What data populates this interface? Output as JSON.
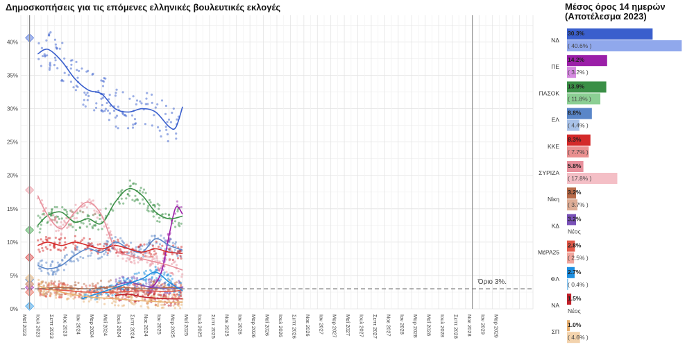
{
  "chart_title": "Δημοσκοπήσεις για τις επόμενες ελληνικές βουλευτικές εκλογές",
  "side_title_line1": "Μέσος όρος 14 ημερών",
  "side_title_line2": "(Αποτέλεσμα 2023)",
  "threshold_label": "Όριο 3%.",
  "chart_data": {
    "type": "line",
    "title": "Δημοσκοπήσεις για τις επόμενες ελληνικές βουλευτικές εκλογές",
    "ylim": [
      0,
      44
    ],
    "yticks": [
      0,
      5,
      10,
      15,
      20,
      25,
      30,
      35,
      40
    ],
    "ytick_labels": [
      "0%",
      "5%",
      "10%",
      "15%",
      "20%",
      "25%",
      "30%",
      "35%",
      "40%"
    ],
    "x_start_month": 0,
    "x_end_month": 76,
    "xtick_labels": [
      "Μαΐ 2023",
      "Ιουλ 2023",
      "Σεπτ 2023",
      "Νοε 2023",
      "Ιαν 2024",
      "Μαρ 2024",
      "Μαΐ 2024",
      "Ιουλ 2024",
      "Σεπτ 2024",
      "Νοε 2024",
      "Ιαν 2025",
      "Μαρ 2025",
      "Μαΐ 2025",
      "Ιουλ 2025",
      "Σεπτ 2025",
      "Νοε 2025",
      "Ιαν 2026",
      "Μαρ 2026",
      "Μαΐ 2026",
      "Ιουλ 2026",
      "Σεπτ 2026",
      "Νοε 2026",
      "Ιαν 2027",
      "Μαρ 2027",
      "Μαΐ 2027",
      "Ιουλ 2027",
      "Σεπτ 2027",
      "Νοε 2027",
      "Ιαν 2028",
      "Μαρ 2028",
      "Μαΐ 2028",
      "Ιουλ 2028",
      "Σεπτ 2028",
      "Νοε 2028",
      "Ιαν 2029",
      "Μαρ 2029"
    ],
    "election_month": 1.3,
    "next_election_month": 67,
    "threshold": 3,
    "series": [
      {
        "name": "ΝΔ",
        "color": "#3a5fcd",
        "light": "#90a8ec",
        "result2023": 40.6,
        "x": [
          2.5,
          4,
          6,
          8,
          10,
          12,
          14,
          16,
          18,
          20,
          22,
          23,
          24
        ],
        "y": [
          38.2,
          38.9,
          37.2,
          34.5,
          32.8,
          32.2,
          30.0,
          29.5,
          30.0,
          29.5,
          27.3,
          27.2,
          30.3
        ]
      },
      {
        "name": "ΠΕ",
        "color": "#9b1fa8",
        "light": "#d58ae0",
        "result2023": 3.2,
        "x": [
          19,
          20,
          21,
          22,
          23,
          24
        ],
        "y": [
          3.0,
          3.8,
          6.0,
          11.0,
          15.2,
          14.2
        ]
      },
      {
        "name": "ΠΑΣΟΚ",
        "color": "#3a8f46",
        "light": "#8ccf94",
        "result2023": 11.8,
        "x": [
          2.5,
          4,
          6,
          8,
          10,
          12,
          14,
          16,
          18,
          20,
          22,
          24
        ],
        "y": [
          12.5,
          14.0,
          14.5,
          13.0,
          13.5,
          12.8,
          16.0,
          18.0,
          17.0,
          14.5,
          13.5,
          13.9
        ]
      },
      {
        "name": "ΕΛ",
        "color": "#5a86c8",
        "light": "#a9c2e8",
        "result2023": 4.4,
        "x": [
          2.5,
          4,
          6,
          8,
          10,
          12,
          14,
          16,
          18,
          20,
          22,
          24
        ],
        "y": [
          6.5,
          6.0,
          6.5,
          8.0,
          9.0,
          8.5,
          10.0,
          9.0,
          8.5,
          10.5,
          9.5,
          8.8
        ]
      },
      {
        "name": "ΚΚΕ",
        "color": "#d42a2a",
        "light": "#ea8f8f",
        "result2023": 7.7,
        "x": [
          2.5,
          4,
          6,
          8,
          10,
          12,
          14,
          16,
          18,
          20,
          22,
          24
        ],
        "y": [
          9.5,
          10.0,
          9.5,
          10.0,
          9.5,
          9.0,
          9.5,
          9.0,
          8.5,
          9.0,
          8.5,
          8.3
        ]
      },
      {
        "name": "ΣΥΡΙΖΑ",
        "color": "#e8909c",
        "light": "#f4bfc6",
        "result2023": 17.8,
        "x": [
          2.5,
          4,
          6,
          8,
          10,
          12,
          14,
          16,
          18,
          20,
          22,
          24
        ],
        "y": [
          17.0,
          14.0,
          12.0,
          14.5,
          16.0,
          14.0,
          9.0,
          8.0,
          7.5,
          7.0,
          6.5,
          5.8
        ]
      },
      {
        "name": "Νίκη",
        "color": "#b86b4a",
        "light": "#deae97",
        "result2023": 3.7,
        "x": [
          2.5,
          6,
          10,
          14,
          18,
          22,
          24
        ],
        "y": [
          3.0,
          3.2,
          3.0,
          3.3,
          3.0,
          3.2,
          3.2
        ]
      },
      {
        "name": "ΚΔ",
        "color": "#7a52b8",
        "light": "#b9a2dc",
        "result2023": null,
        "x": [
          14,
          16,
          18,
          20,
          22,
          24
        ],
        "y": [
          3.5,
          4.0,
          3.5,
          3.2,
          3.0,
          3.2
        ]
      },
      {
        "name": "ΜέΡΑ25",
        "color": "#e35a4a",
        "light": "#f1a79e",
        "result2023": 2.5,
        "x": [
          2.5,
          6,
          10,
          14,
          18,
          22,
          24
        ],
        "y": [
          3.0,
          2.8,
          2.5,
          2.5,
          2.7,
          2.6,
          2.8
        ]
      },
      {
        "name": "ΦΛ",
        "color": "#1f8fe0",
        "light": "#86c4f0",
        "result2023": 0.4,
        "x": [
          9,
          12,
          15,
          18,
          20,
          22,
          24
        ],
        "y": [
          1.5,
          2.5,
          3.5,
          4.5,
          5.5,
          4.0,
          2.7
        ]
      },
      {
        "name": "ΝΑ",
        "color": "#c0202a",
        "light": "#e48a90",
        "result2023": null,
        "x": [
          14,
          16,
          18,
          20,
          22,
          24
        ],
        "y": [
          2.0,
          2.2,
          1.8,
          1.6,
          1.5,
          1.5
        ]
      },
      {
        "name": "ΣΠ",
        "color": "#e8b070",
        "light": "#f3d3ad",
        "result2023": 4.6,
        "x": [
          2.5,
          6,
          10,
          14,
          18,
          22,
          24
        ],
        "y": [
          3.5,
          2.5,
          1.8,
          1.5,
          1.2,
          1.0,
          1.0
        ]
      }
    ],
    "bar_panel": {
      "max_value": 42,
      "items": [
        {
          "party": "ΝΔ",
          "current": 30.3,
          "current_label": "30.3%",
          "previous": 40.6,
          "previous_label": "( 40.6% )"
        },
        {
          "party": "ΠΕ",
          "current": 14.2,
          "current_label": "14.2%",
          "previous": 3.2,
          "previous_label": "( 3.2% )"
        },
        {
          "party": "ΠΑΣΟΚ",
          "current": 13.9,
          "current_label": "13.9%",
          "previous": 11.8,
          "previous_label": "( 11.8% )"
        },
        {
          "party": "ΕΛ",
          "current": 8.8,
          "current_label": "8.8%",
          "previous": 4.4,
          "previous_label": "( 4.4% )"
        },
        {
          "party": "ΚΚΕ",
          "current": 8.3,
          "current_label": "8.3%",
          "previous": 7.7,
          "previous_label": "( 7.7% )"
        },
        {
          "party": "ΣΥΡΙΖΑ",
          "current": 5.8,
          "current_label": "5.8%",
          "previous": 17.8,
          "previous_label": "( 17.8% )"
        },
        {
          "party": "Νίκη",
          "current": 3.2,
          "current_label": "3.2%",
          "previous": 3.7,
          "previous_label": "( 3.7% )"
        },
        {
          "party": "ΚΔ",
          "current": 3.2,
          "current_label": "3.2%",
          "previous": null,
          "previous_label": "Νέος"
        },
        {
          "party": "ΜέΡΑ25",
          "current": 2.8,
          "current_label": "2.8%",
          "previous": 2.5,
          "previous_label": "( 2.5% )"
        },
        {
          "party": "ΦΛ",
          "current": 2.7,
          "current_label": "2.7%",
          "previous": 0.4,
          "previous_label": "( 0.4% )"
        },
        {
          "party": "ΝΑ",
          "current": 1.5,
          "current_label": "1.5%",
          "previous": null,
          "previous_label": "Νέος"
        },
        {
          "party": "ΣΠ",
          "current": 1.0,
          "current_label": "1.0%",
          "previous": 4.6,
          "previous_label": "( 4.6% )"
        }
      ]
    }
  }
}
